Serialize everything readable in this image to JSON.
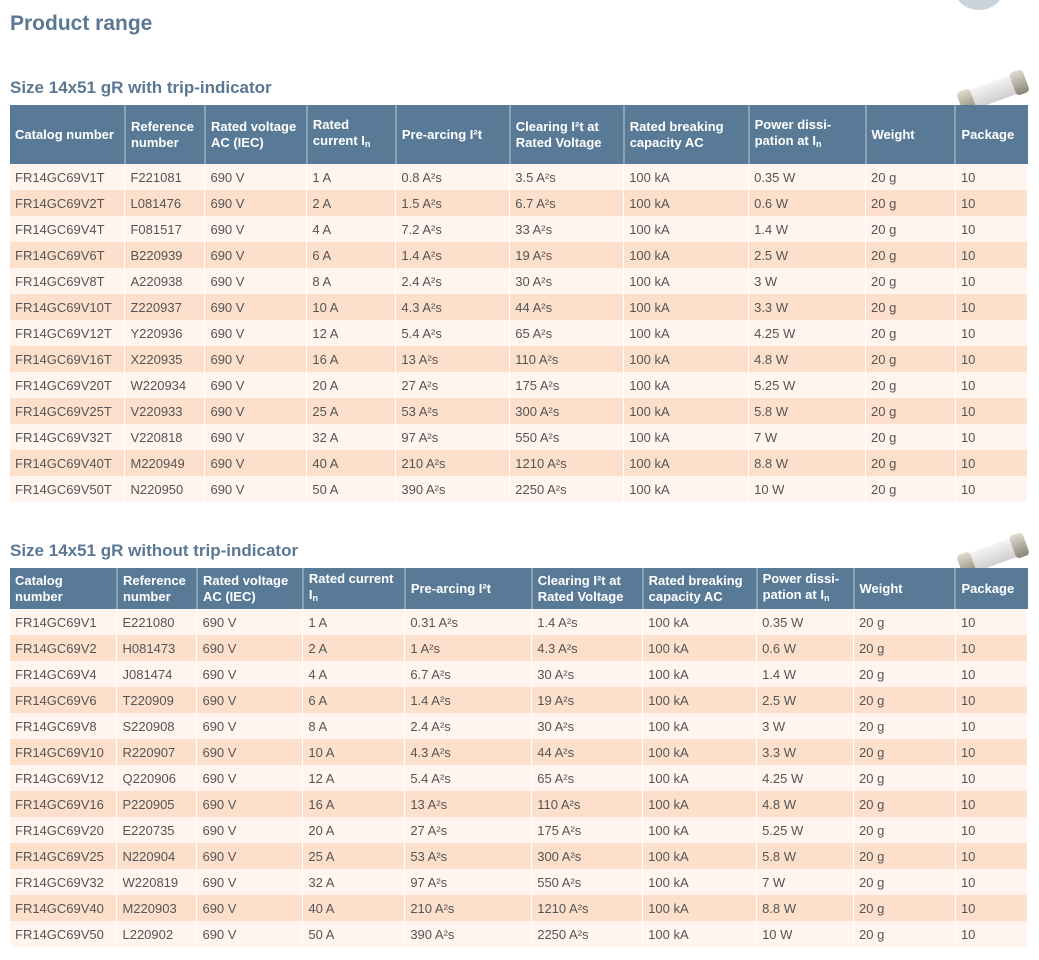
{
  "page_title": "Product range",
  "headers1": [
    "Catalog number",
    "Reference number",
    "Rated voltage AC (IEC)",
    "Rated current I",
    "Pre-arcing I²t",
    "Clearing I²t at Rated Voltage",
    "Rated breaking capacity AC",
    "Power dissi-pation at I",
    "Weight",
    "Package"
  ],
  "headers2": [
    "Catalog number",
    "Reference number",
    "Rated voltage AC (IEC)",
    "Rated current I",
    "Pre-arcing I²t",
    "Clearing I²t at Rated Voltage",
    "Rated breaking capacity AC",
    "Power dissi-pation at I",
    "Weight",
    "Package"
  ],
  "subscript": "n",
  "sections": [
    {
      "title": "Size 14x51 gR with trip-indicator",
      "rows": [
        [
          "FR14GC69V1T",
          "F221081",
          "690 V",
          "1 A",
          "0.8 A²s",
          "3.5 A²s",
          "100 kA",
          "0.35 W",
          "20 g",
          "10"
        ],
        [
          "FR14GC69V2T",
          "L081476",
          "690 V",
          "2 A",
          "1.5 A²s",
          "6.7 A²s",
          "100 kA",
          "0.6 W",
          "20 g",
          "10"
        ],
        [
          "FR14GC69V4T",
          "F081517",
          "690 V",
          "4 A",
          "7.2 A²s",
          "33 A²s",
          "100 kA",
          "1.4 W",
          "20 g",
          "10"
        ],
        [
          "FR14GC69V6T",
          "B220939",
          "690 V",
          "6 A",
          "1.4 A²s",
          "19 A²s",
          "100 kA",
          "2.5 W",
          "20 g",
          "10"
        ],
        [
          "FR14GC69V8T",
          "A220938",
          "690 V",
          "8 A",
          "2.4 A²s",
          "30 A²s",
          "100 kA",
          "3 W",
          "20 g",
          "10"
        ],
        [
          "FR14GC69V10T",
          "Z220937",
          "690 V",
          "10 A",
          "4.3 A²s",
          "44 A²s",
          "100 kA",
          "3.3 W",
          "20 g",
          "10"
        ],
        [
          "FR14GC69V12T",
          "Y220936",
          "690 V",
          "12 A",
          "5.4 A²s",
          "65 A²s",
          "100 kA",
          "4.25 W",
          "20 g",
          "10"
        ],
        [
          "FR14GC69V16T",
          "X220935",
          "690 V",
          "16 A",
          "13 A²s",
          "110 A²s",
          "100 kA",
          "4.8 W",
          "20 g",
          "10"
        ],
        [
          "FR14GC69V20T",
          "W220934",
          "690 V",
          "20 A",
          "27 A²s",
          "175 A²s",
          "100 kA",
          "5.25 W",
          "20 g",
          "10"
        ],
        [
          "FR14GC69V25T",
          "V220933",
          "690 V",
          "25 A",
          "53 A²s",
          "300 A²s",
          "100 kA",
          "5.8 W",
          "20 g",
          "10"
        ],
        [
          "FR14GC69V32T",
          "V220818",
          "690 V",
          "32 A",
          "97 A²s",
          "550 A²s",
          "100 kA",
          "7 W",
          "20 g",
          "10"
        ],
        [
          "FR14GC69V40T",
          "M220949",
          "690 V",
          "40 A",
          "210 A²s",
          "1210 A²s",
          "100 kA",
          "8.8 W",
          "20 g",
          "10"
        ],
        [
          "FR14GC69V50T",
          "N220950",
          "690 V",
          "50 A",
          "390 A²s",
          "2250 A²s",
          "100 kA",
          "10 W",
          "20 g",
          "10"
        ]
      ]
    },
    {
      "title": "Size 14x51 gR without trip-indicator",
      "rows": [
        [
          "FR14GC69V1",
          "E221080",
          "690 V",
          "1 A",
          "0.31 A²s",
          "1.4 A²s",
          "100 kA",
          "0.35 W",
          "20 g",
          "10"
        ],
        [
          "FR14GC69V2",
          "H081473",
          "690 V",
          "2 A",
          "1 A²s",
          "4.3 A²s",
          "100 kA",
          "0.6 W",
          "20 g",
          "10"
        ],
        [
          "FR14GC69V4",
          "J081474",
          "690 V",
          "4 A",
          "6.7 A²s",
          "30 A²s",
          "100 kA",
          "1.4 W",
          "20 g",
          "10"
        ],
        [
          "FR14GC69V6",
          "T220909",
          "690 V",
          "6 A",
          "1.4 A²s",
          "19 A²s",
          "100 kA",
          "2.5 W",
          "20 g",
          "10"
        ],
        [
          "FR14GC69V8",
          "S220908",
          "690 V",
          "8 A",
          "2.4 A²s",
          "30 A²s",
          "100 kA",
          "3 W",
          "20 g",
          "10"
        ],
        [
          "FR14GC69V10",
          "R220907",
          "690 V",
          "10 A",
          "4.3 A²s",
          "44 A²s",
          "100 kA",
          "3.3 W",
          "20 g",
          "10"
        ],
        [
          "FR14GC69V12",
          "Q220906",
          "690 V",
          "12 A",
          "5.4 A²s",
          "65 A²s",
          "100 kA",
          "4.25 W",
          "20 g",
          "10"
        ],
        [
          "FR14GC69V16",
          "P220905",
          "690 V",
          "16 A",
          "13 A²s",
          "110 A²s",
          "100 kA",
          "4.8 W",
          "20 g",
          "10"
        ],
        [
          "FR14GC69V20",
          "E220735",
          "690 V",
          "20 A",
          "27 A²s",
          "175 A²s",
          "100 kA",
          "5.25 W",
          "20 g",
          "10"
        ],
        [
          "FR14GC69V25",
          "N220904",
          "690 V",
          "25 A",
          "53 A²s",
          "300 A²s",
          "100 kA",
          "5.8 W",
          "20 g",
          "10"
        ],
        [
          "FR14GC69V32",
          "W220819",
          "690 V",
          "32 A",
          "97 A²s",
          "550 A²s",
          "100 kA",
          "7 W",
          "20 g",
          "10"
        ],
        [
          "FR14GC69V40",
          "M220903",
          "690 V",
          "40 A",
          "210 A²s",
          "1210 A²s",
          "100 kA",
          "8.8 W",
          "20 g",
          "10"
        ],
        [
          "FR14GC69V50",
          "L220902",
          "690 V",
          "50 A",
          "390 A²s",
          "2250 A²s",
          "100 kA",
          "10 W",
          "20 g",
          "10"
        ]
      ]
    }
  ],
  "colors": {
    "header": "#587a96",
    "row_odd": "#fff4ee",
    "row_even": "#fde0cc",
    "title": "#5a7893"
  }
}
